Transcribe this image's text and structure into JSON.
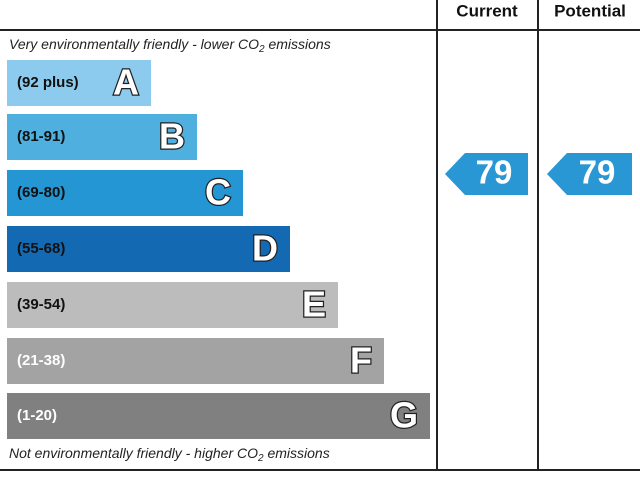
{
  "header": {
    "current": "Current",
    "potential": "Potential"
  },
  "top_note": {
    "before": "Very environmentally friendly - lower CO",
    "sub": "2",
    "after": " emissions"
  },
  "bands": [
    {
      "range": "(92 plus)",
      "letter": "A"
    },
    {
      "range": "(81-91)",
      "letter": "B"
    },
    {
      "range": "(69-80)",
      "letter": "C"
    },
    {
      "range": "(55-68)",
      "letter": "D"
    },
    {
      "range": "(39-54)",
      "letter": "E"
    },
    {
      "range": "(21-38)",
      "letter": "F"
    },
    {
      "range": "(1-20)",
      "letter": "G"
    }
  ],
  "bottom_note": {
    "before": "Not environmentally friendly - higher CO",
    "sub": "2",
    "after": " emissions"
  },
  "current": 79,
  "potential": 79
}
